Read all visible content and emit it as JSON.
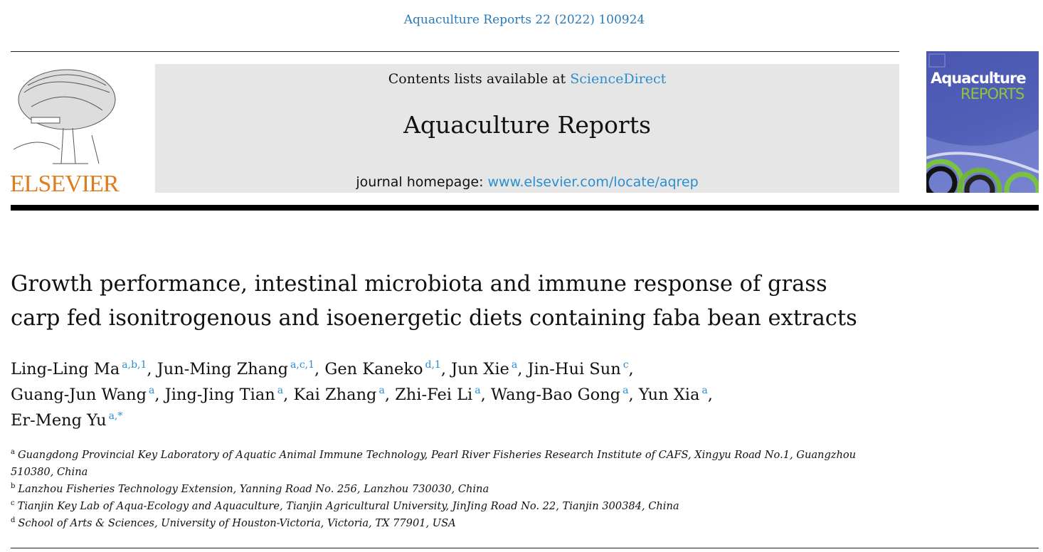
{
  "journal_reference": "Aquaculture Reports 22 (2022) 100924",
  "publisher_logo": {
    "text": "ELSEVIER",
    "color": "#e07b1e"
  },
  "header": {
    "contents_prefix": "Contents lists available at ",
    "contents_link": "ScienceDirect",
    "journal_name": "Aquaculture Reports",
    "homepage_prefix": "journal homepage: ",
    "homepage_link": "www.elsevier.com/locate/aqrep"
  },
  "cover": {
    "title_line1": "Aquaculture",
    "title_line2": "REPORTS",
    "accent": "#8cc63f",
    "background": "#4f5bb5"
  },
  "title_lines": [
    "Growth performance, intestinal microbiota and immune response of grass",
    "carp fed isonitrogenous and isoenergetic diets containing faba bean extracts"
  ],
  "author_lines": [
    [
      {
        "name": "Ling-Ling Ma",
        "sup": "a,b,1"
      },
      {
        "name": "Jun-Ming Zhang",
        "sup": "a,c,1"
      },
      {
        "name": "Gen Kaneko",
        "sup": "d,1"
      },
      {
        "name": "Jun Xie",
        "sup": "a"
      },
      {
        "name": "Jin-Hui Sun",
        "sup": "c"
      }
    ],
    [
      {
        "name": "Guang-Jun Wang",
        "sup": "a"
      },
      {
        "name": "Jing-Jing Tian",
        "sup": "a"
      },
      {
        "name": "Kai Zhang",
        "sup": "a"
      },
      {
        "name": "Zhi-Fei Li",
        "sup": "a"
      },
      {
        "name": "Wang-Bao Gong",
        "sup": "a"
      },
      {
        "name": "Yun Xia",
        "sup": "a"
      }
    ],
    [
      {
        "name": "Er-Meng Yu",
        "sup": "a,*"
      }
    ]
  ],
  "affiliations": [
    {
      "label": "a",
      "lines": [
        "Guangdong Provincial Key Laboratory of Aquatic Animal Immune Technology, Pearl River Fisheries Research Institute of CAFS, Xingyu Road No.1, Guangzhou",
        "510380, China"
      ]
    },
    {
      "label": "b",
      "lines": [
        "Lanzhou Fisheries Technology Extension, Yanning Road No. 256, Lanzhou 730030, China"
      ]
    },
    {
      "label": "c",
      "lines": [
        "Tianjin Key Lab of Aqua-Ecology and Aquaculture, Tianjin Agricultural University, JinJing Road No. 22, Tianjin 300384, China"
      ]
    },
    {
      "label": "d",
      "lines": [
        "School of Arts & Sciences, University of Houston-Victoria, Victoria, TX 77901, USA"
      ]
    }
  ]
}
